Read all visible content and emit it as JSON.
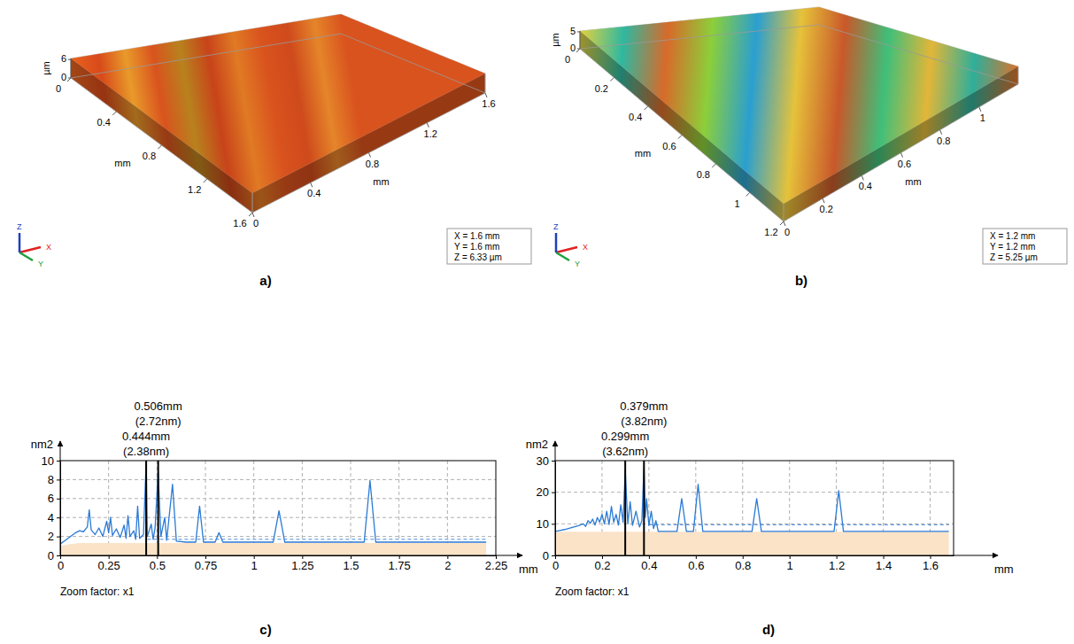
{
  "chart_data": [
    {
      "type": "surface",
      "label": "a)",
      "x_label": "mm",
      "y_label": "mm",
      "z_label": "µm",
      "xlim": [
        0,
        1.6
      ],
      "xticks": [
        0,
        0.4,
        0.8,
        1.2,
        1.6
      ],
      "ylim": [
        0,
        1.6
      ],
      "yticks": [
        0,
        0.4,
        0.8,
        1.2,
        1.6
      ],
      "zlim": [
        0,
        6.33
      ],
      "zticks": [
        0,
        6
      ],
      "colors": [
        "#e8641f",
        "#d84a1a",
        "#e89a2a",
        "#d9531e",
        "#b8821e",
        "#c8431a",
        "#e07a24",
        "#d9531e",
        "#cf4a1c",
        "#e5852a",
        "#d9531e"
      ],
      "info": [
        "X = 1.6 mm",
        "Y = 1.6 mm",
        "Z = 6.33 µm"
      ],
      "axes_triad": [
        "X",
        "Y",
        "Z"
      ]
    },
    {
      "type": "surface",
      "label": "b)",
      "x_label": "mm",
      "y_label": "mm",
      "z_label": "µm",
      "xlim": [
        0,
        1.2
      ],
      "xticks": [
        0,
        0.2,
        0.4,
        0.6,
        0.8,
        1
      ],
      "ylim": [
        0,
        1.2
      ],
      "yticks": [
        0,
        0.2,
        0.4,
        0.6,
        0.8,
        1,
        1.2
      ],
      "zlim": [
        0,
        5.25
      ],
      "zticks": [
        0,
        5
      ],
      "colors": [
        "#e6d23e",
        "#2fb8a0",
        "#d86a2a",
        "#8ccf3a",
        "#2a9fd0",
        "#e6c23a",
        "#c9582a",
        "#3fbf7a",
        "#e2b638",
        "#2fae9a",
        "#d9732c"
      ],
      "info": [
        "X = 1.2 mm",
        "Y = 1.2 mm",
        "Z = 5.25 µm"
      ],
      "axes_triad": [
        "X",
        "Y",
        "Z"
      ]
    },
    {
      "type": "line",
      "label": "c)",
      "x_label": "mm",
      "y_label": "nm2",
      "caption": "Zoom factor: x1",
      "xlim": [
        0,
        2.25
      ],
      "xticks": [
        0,
        0.25,
        0.5,
        0.75,
        1,
        1.25,
        1.5,
        1.75,
        2,
        2.25
      ],
      "ylim": [
        0,
        10
      ],
      "yticks": [
        0,
        2,
        4,
        6,
        8,
        10
      ],
      "grid": true,
      "series": [
        {
          "type": "area",
          "color": "#fbe3c8",
          "x": [
            0,
            0.05,
            0.1,
            2.2
          ],
          "values": [
            1.0,
            1.2,
            1.3,
            1.3
          ]
        },
        {
          "type": "line",
          "color": "#2a7ad5",
          "line_style": "solid",
          "x": [
            0,
            0.02,
            0.04,
            0.06,
            0.08,
            0.1,
            0.12,
            0.14,
            0.15,
            0.16,
            0.18,
            0.2,
            0.22,
            0.24,
            0.25,
            0.26,
            0.27,
            0.29,
            0.31,
            0.33,
            0.34,
            0.35,
            0.36,
            0.38,
            0.39,
            0.4,
            0.41,
            0.43,
            0.444,
            0.45,
            0.47,
            0.48,
            0.49,
            0.506,
            0.52,
            0.54,
            0.55,
            0.58,
            0.6,
            0.65,
            0.7,
            0.72,
            0.74,
            0.8,
            0.82,
            0.84,
            1.1,
            1.13,
            1.16,
            1.57,
            1.6,
            1.63,
            2.2
          ],
          "values": [
            1.2,
            1.5,
            1.8,
            2.1,
            2.4,
            2.6,
            2.5,
            3.0,
            4.8,
            2.7,
            2.2,
            2.9,
            2.0,
            3.6,
            2.4,
            4.0,
            2.1,
            2.8,
            1.9,
            3.2,
            1.8,
            4.2,
            2.0,
            2.6,
            1.7,
            5.2,
            1.8,
            2.2,
            9.9,
            2.0,
            3.3,
            1.7,
            2.9,
            8.8,
            2.0,
            4.0,
            1.6,
            7.5,
            1.5,
            1.4,
            1.4,
            5.2,
            1.4,
            1.4,
            2.4,
            1.4,
            1.4,
            4.7,
            1.4,
            1.4,
            7.9,
            1.4,
            1.4
          ]
        },
        {
          "type": "line",
          "color": "#4a8ad8",
          "line_style": "dashed",
          "x": [
            0.45,
            2.2
          ],
          "values": [
            1.7,
            1.7
          ]
        }
      ],
      "annotations": [
        {
          "x": 0.506,
          "text": "0.506mm",
          "subtext": "(2.72nm)"
        },
        {
          "x": 0.444,
          "text": "0.444mm",
          "subtext": "(2.38nm)"
        }
      ]
    },
    {
      "type": "line",
      "label": "d)",
      "x_label": "mm",
      "y_label": "nm2",
      "caption": "Zoom factor: x1",
      "xlim": [
        0,
        1.7
      ],
      "xticks": [
        0,
        0.2,
        0.4,
        0.6,
        0.8,
        1,
        1.2,
        1.4,
        1.6
      ],
      "ylim": [
        0,
        30
      ],
      "yticks": [
        0,
        10,
        20,
        30
      ],
      "grid": true,
      "series": [
        {
          "type": "area",
          "color": "#fbe3c8",
          "x": [
            0,
            1.68
          ],
          "values": [
            7.5,
            7.5
          ]
        },
        {
          "type": "line",
          "color": "#2a7ad5",
          "line_style": "solid",
          "x": [
            0,
            0.02,
            0.04,
            0.06,
            0.08,
            0.1,
            0.12,
            0.13,
            0.14,
            0.15,
            0.16,
            0.17,
            0.18,
            0.19,
            0.2,
            0.21,
            0.22,
            0.23,
            0.24,
            0.25,
            0.26,
            0.27,
            0.28,
            0.29,
            0.299,
            0.31,
            0.32,
            0.33,
            0.345,
            0.36,
            0.37,
            0.379,
            0.385,
            0.39,
            0.4,
            0.41,
            0.42,
            0.43,
            0.44,
            0.52,
            0.54,
            0.56,
            0.59,
            0.61,
            0.63,
            0.84,
            0.86,
            0.88,
            1.19,
            1.21,
            1.23,
            1.68
          ],
          "values": [
            7.6,
            7.9,
            8.2,
            8.6,
            9.0,
            9.4,
            10.0,
            9.2,
            11.0,
            10.2,
            11.5,
            9.6,
            12.0,
            10.5,
            13.0,
            10.0,
            14.0,
            9.8,
            15.5,
            10.5,
            13.0,
            9.6,
            16.0,
            10.5,
            27.0,
            10.0,
            17.0,
            9.5,
            14.0,
            9.0,
            11.0,
            28.0,
            12.0,
            18.0,
            9.5,
            14.0,
            8.5,
            11.0,
            7.6,
            7.6,
            18.0,
            7.6,
            7.6,
            22.5,
            7.6,
            7.6,
            18.0,
            7.6,
            7.6,
            20.5,
            7.6,
            7.6
          ]
        },
        {
          "type": "line",
          "color": "#4a8ad8",
          "line_style": "dashed",
          "x": [
            0.4,
            1.68
          ],
          "values": [
            9.7,
            9.7
          ]
        }
      ],
      "annotations": [
        {
          "x": 0.379,
          "text": "0.379mm",
          "subtext": "(3.82nm)"
        },
        {
          "x": 0.299,
          "text": "0.299mm",
          "subtext": "(3.62nm)"
        }
      ]
    }
  ]
}
